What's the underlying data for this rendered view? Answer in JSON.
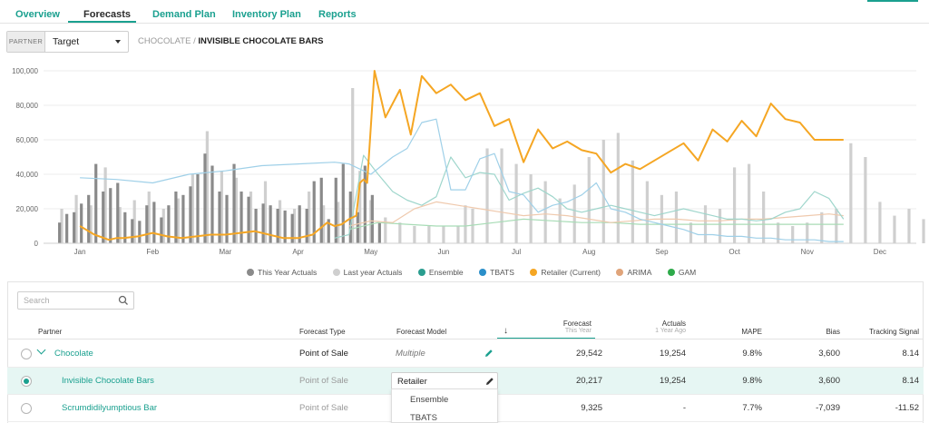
{
  "tabs": [
    {
      "label": "Overview",
      "active": false
    },
    {
      "label": "Forecasts",
      "active": true
    },
    {
      "label": "Demand Plan",
      "active": false
    },
    {
      "label": "Inventory Plan",
      "active": false
    },
    {
      "label": "Reports",
      "active": false
    }
  ],
  "partner": {
    "tag": "PARTNER",
    "value": "Target"
  },
  "breadcrumb": {
    "category": "CHOCOLATE",
    "separator": "/",
    "product": "INVISIBLE CHOCOLATE BARS"
  },
  "colors": {
    "accent": "#1aa08f",
    "this_year": "#8a8a8a",
    "last_year": "#cfcfcf",
    "ensemble": "#2a9d8f",
    "tbats": "#2b8fc9",
    "retailer": "#f5a623",
    "arima": "#e0a47a",
    "gam": "#2eaa4a"
  },
  "legend": [
    {
      "label": "This Year Actuals",
      "color": "#8a8a8a"
    },
    {
      "label": "Last year Actuals",
      "color": "#cfcfcf"
    },
    {
      "label": "Ensemble",
      "color": "#2a9d8f"
    },
    {
      "label": "TBATS",
      "color": "#2b8fc9"
    },
    {
      "label": "Retailer (Current)",
      "color": "#f5a623"
    },
    {
      "label": "ARIMA",
      "color": "#e0a47a"
    },
    {
      "label": "GAM",
      "color": "#2eaa4a"
    }
  ],
  "chart_data": {
    "type": "bar",
    "x_range": [
      0,
      12
    ],
    "ylim": [
      0,
      100000
    ],
    "y_ticks": [
      0,
      20000,
      40000,
      60000,
      80000,
      100000
    ],
    "y_tick_labels": [
      "0",
      "20,000",
      "40,000",
      "60,000",
      "80,000",
      "100,000"
    ],
    "months": [
      "Jan",
      "Feb",
      "Mar",
      "Apr",
      "May",
      "Jun",
      "Jul",
      "Aug",
      "Sep",
      "Oct",
      "Nov",
      "Dec"
    ],
    "this_year_actuals": {
      "x": [
        0.2,
        0.3,
        0.4,
        0.5,
        0.6,
        0.7,
        0.8,
        0.9,
        1.0,
        1.1,
        1.2,
        1.3,
        1.4,
        1.5,
        1.6,
        1.7,
        1.8,
        1.9,
        2.0,
        2.1,
        2.2,
        2.3,
        2.4,
        2.5,
        2.6,
        2.7,
        2.8,
        2.9,
        3.0,
        3.1,
        3.2,
        3.3,
        3.4,
        3.5,
        3.6,
        3.7,
        3.8,
        3.9,
        4.0,
        4.1,
        4.2,
        4.3,
        4.4,
        4.5,
        4.6
      ],
      "values": [
        12000,
        17000,
        18000,
        23000,
        28000,
        46000,
        30000,
        32000,
        35000,
        18000,
        14000,
        13000,
        22000,
        24000,
        15000,
        22000,
        30000,
        28000,
        33000,
        40000,
        52000,
        45000,
        30000,
        28000,
        46000,
        30000,
        27000,
        20000,
        23000,
        22000,
        20000,
        19000,
        17000,
        22000,
        20000,
        36000,
        38000,
        14000,
        38000,
        46000,
        30000,
        18000,
        45000,
        28000,
        12000
      ]
    },
    "last_year_actuals": {
      "x": [
        0.25,
        0.45,
        0.65,
        0.85,
        1.05,
        1.25,
        1.45,
        1.65,
        1.85,
        2.05,
        2.25,
        2.45,
        2.65,
        2.85,
        3.05,
        3.25,
        3.45,
        3.65,
        3.85,
        4.05,
        4.25,
        4.35,
        4.5,
        4.7,
        4.9,
        5.1,
        5.3,
        5.5,
        5.7,
        5.8,
        5.9,
        6.1,
        6.3,
        6.5,
        6.7,
        6.9,
        7.1,
        7.3,
        7.5,
        7.7,
        7.9,
        8.1,
        8.3,
        8.5,
        8.7,
        8.9,
        9.1,
        9.3,
        9.5,
        9.7,
        9.9,
        10.1,
        10.3,
        10.5,
        10.7,
        10.9,
        11.1,
        11.3,
        11.5,
        11.7,
        11.9,
        12.1,
        12.3
      ],
      "values": [
        20000,
        28000,
        22000,
        44000,
        21000,
        25000,
        30000,
        20000,
        26000,
        40000,
        65000,
        42000,
        38000,
        30000,
        36000,
        25000,
        20000,
        30000,
        22000,
        24000,
        90000,
        42000,
        25000,
        15000,
        12000,
        10000,
        10000,
        10000,
        10000,
        22000,
        20000,
        55000,
        55000,
        46000,
        40000,
        36000,
        26000,
        34000,
        50000,
        60000,
        64000,
        48000,
        36000,
        28000,
        30000,
        12000,
        22000,
        20000,
        44000,
        46000,
        30000,
        12000,
        10000,
        12000,
        18000,
        20000,
        58000,
        50000,
        24000,
        16000,
        20000,
        14000,
        28000
      ]
    },
    "series": [
      {
        "name": "Retailer (Current)",
        "x": [
          0.5,
          0.7,
          0.9,
          1.0,
          1.1,
          1.3,
          1.5,
          1.7,
          1.9,
          2.1,
          2.3,
          2.5,
          2.7,
          2.9,
          3.1,
          3.3,
          3.5,
          3.7,
          3.9,
          4.0,
          4.1,
          4.2,
          4.3,
          4.35,
          4.4,
          4.45,
          4.55,
          4.7,
          4.9,
          5.05,
          5.2,
          5.4,
          5.6,
          5.8,
          6.0,
          6.2,
          6.4,
          6.6,
          6.8,
          7.0,
          7.2,
          7.4,
          7.6,
          7.8,
          8.0,
          8.2,
          8.4,
          8.6,
          8.8,
          9.0,
          9.2,
          9.4,
          9.6,
          9.8,
          10.0,
          10.2,
          10.4,
          10.6,
          10.8,
          11.0
        ],
        "values": [
          10000,
          5000,
          2000,
          3000,
          3000,
          4000,
          6000,
          4000,
          3000,
          4000,
          5000,
          5000,
          6000,
          7000,
          5000,
          3000,
          3000,
          5000,
          12000,
          10000,
          11000,
          14000,
          16000,
          35000,
          37000,
          35000,
          100000,
          73000,
          89000,
          63000,
          97000,
          87000,
          92000,
          83000,
          87000,
          68000,
          72000,
          47000,
          66000,
          55000,
          59000,
          54000,
          52000,
          41000,
          46000,
          43000,
          48000,
          53000,
          58000,
          48000,
          66000,
          59000,
          71000,
          62000,
          81000,
          72000,
          70000,
          60000,
          60000,
          60000
        ]
      },
      {
        "name": "TBATS",
        "x": [
          0.5,
          1.0,
          1.5,
          2.0,
          2.5,
          3.0,
          3.5,
          4.0,
          4.2,
          4.5,
          4.8,
          5.0,
          5.2,
          5.4,
          5.6,
          5.8,
          6.0,
          6.2,
          6.4,
          6.6,
          6.8,
          7.0,
          7.2,
          7.4,
          7.6,
          7.8,
          8.0,
          8.2,
          8.4,
          8.6,
          8.8,
          9.0,
          9.2,
          9.4,
          9.6,
          9.8,
          10.0,
          10.2,
          10.4,
          10.6,
          10.8,
          11.0
        ],
        "values": [
          38000,
          37000,
          35000,
          40000,
          42000,
          45000,
          46000,
          47000,
          46000,
          40000,
          50000,
          55000,
          70000,
          72000,
          31000,
          31000,
          49000,
          52000,
          30000,
          28000,
          18000,
          22000,
          24000,
          28000,
          35000,
          20000,
          18000,
          14000,
          12000,
          10000,
          8000,
          5000,
          5000,
          4000,
          4000,
          3000,
          3000,
          2000,
          2000,
          2000,
          1000,
          1000
        ]
      },
      {
        "name": "Ensemble",
        "x": [
          4.0,
          4.2,
          4.4,
          4.6,
          4.8,
          5.0,
          5.2,
          5.4,
          5.6,
          5.8,
          6.0,
          6.2,
          6.4,
          6.6,
          6.8,
          7.0,
          7.2,
          7.4,
          7.6,
          7.8,
          8.0,
          8.2,
          8.4,
          8.6,
          8.8,
          9.0,
          9.2,
          9.4,
          9.6,
          9.8,
          10.0,
          10.2,
          10.4,
          10.6,
          10.8,
          11.0
        ],
        "values": [
          3000,
          5000,
          51000,
          40000,
          30000,
          25000,
          22000,
          27000,
          50000,
          38000,
          41000,
          40000,
          25000,
          29000,
          32000,
          27000,
          20000,
          18000,
          20000,
          22000,
          20000,
          18000,
          16000,
          18000,
          20000,
          18000,
          16000,
          14000,
          14000,
          13000,
          14000,
          18000,
          20000,
          30000,
          26000,
          14000
        ]
      },
      {
        "name": "ARIMA",
        "x": [
          4.2,
          4.5,
          4.8,
          5.1,
          5.4,
          5.7,
          6.0,
          6.3,
          6.6,
          6.9,
          7.2,
          7.5,
          7.8,
          8.1,
          8.4,
          8.7,
          9.0,
          9.3,
          9.6,
          9.9,
          10.2,
          10.5,
          10.8,
          11.0
        ],
        "values": [
          10000,
          13000,
          12000,
          20000,
          24000,
          22000,
          20000,
          18000,
          16000,
          17000,
          16000,
          14000,
          12000,
          13000,
          14000,
          14000,
          13000,
          13000,
          14000,
          14000,
          15000,
          16000,
          17000,
          16000
        ]
      },
      {
        "name": "GAM",
        "x": [
          4.2,
          4.6,
          5.0,
          5.4,
          5.8,
          6.2,
          6.6,
          7.0,
          7.4,
          7.8,
          8.2,
          8.6,
          9.0,
          9.4,
          9.8,
          10.2,
          10.6,
          11.0
        ],
        "values": [
          8000,
          12000,
          11000,
          10000,
          10000,
          12000,
          14000,
          13000,
          12000,
          12000,
          11000,
          11000,
          11000,
          11000,
          11000,
          11000,
          11000,
          11000
        ]
      }
    ]
  },
  "table": {
    "search_placeholder": "Search",
    "headers": {
      "partner": "Partner",
      "forecast_type": "Forecast Type",
      "forecast_model": "Forecast Model",
      "forecast": "Forecast",
      "forecast_sub": "This Year",
      "actuals": "Actuals",
      "actuals_sub": "1 Year Ago",
      "mape": "MAPE",
      "bias": "Bias",
      "tracking": "Tracking Signal"
    },
    "rows": [
      {
        "partner": "Chocolate",
        "forecast_type": "Point of Sale",
        "forecast_model": "Multiple",
        "forecast": "29,542",
        "actuals": "19,254",
        "mape": "9.8%",
        "bias": "3,600",
        "tracking": "8.14"
      },
      {
        "partner": "Invisible Chocolate Bars",
        "forecast_type": "Point of Sale",
        "forecast_model": "Retailer",
        "forecast": "20,217",
        "actuals": "19,254",
        "mape": "9.8%",
        "bias": "3,600",
        "tracking": "8.14"
      },
      {
        "partner": "Scrumdidilyumptious Bar",
        "forecast_type": "Point of Sale",
        "forecast_model": "",
        "forecast": "9,325",
        "actuals": "-",
        "mape": "7.7%",
        "bias": "-7,039",
        "tracking": "-11.52"
      }
    ],
    "model_options": [
      "Ensemble",
      "TBATS"
    ]
  }
}
